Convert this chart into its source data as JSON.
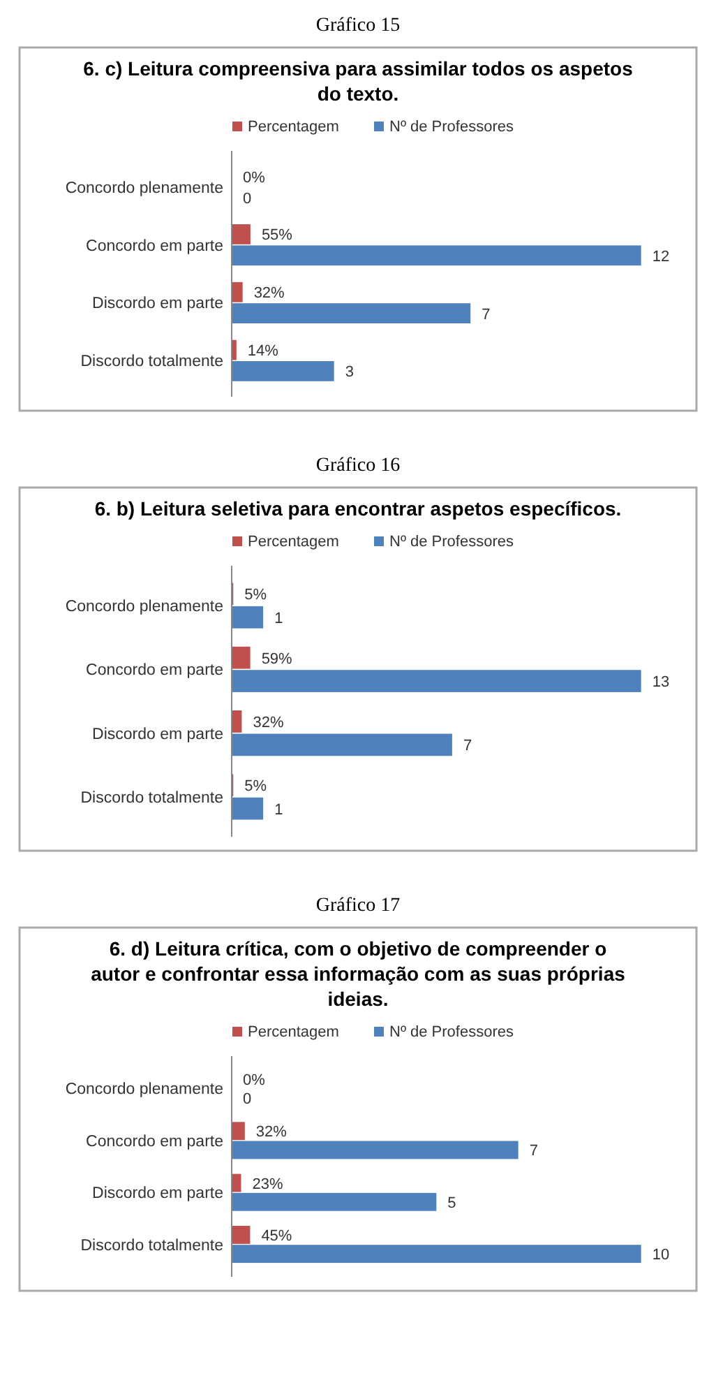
{
  "chart_data": [
    {
      "type": "bar",
      "orientation": "horizontal",
      "title": "6. c) Leitura compreensiva para assimilar todos os aspetos do texto.",
      "annotations": [
        "Gráfico 15"
      ],
      "legend": "top",
      "categories": [
        "Concordo plenamente",
        "Concordo em parte",
        "Discordo em parte",
        "Discordo totalmente"
      ],
      "series": [
        {
          "name": "Percentagem",
          "color": "#c0504d",
          "values": [
            0,
            0.55,
            0.32,
            0.14
          ],
          "value_labels": [
            "0%",
            "55%",
            "32%",
            "14%"
          ]
        },
        {
          "name": "Nº de Professores",
          "color": "#4f81bd",
          "values": [
            0,
            12,
            7,
            3
          ],
          "value_labels": [
            "0",
            "12",
            "7",
            "3"
          ]
        }
      ]
    },
    {
      "type": "bar",
      "orientation": "horizontal",
      "title": "6. b) Leitura seletiva para encontrar aspetos específicos.",
      "annotations": [
        "Gráfico 16"
      ],
      "legend": "top",
      "categories": [
        "Concordo plenamente",
        "Concordo em parte",
        "Discordo em parte",
        "Discordo totalmente"
      ],
      "series": [
        {
          "name": "Percentagem",
          "color": "#c0504d",
          "values": [
            0.05,
            0.59,
            0.32,
            0.05
          ],
          "value_labels": [
            "5%",
            "59%",
            "32%",
            "5%"
          ]
        },
        {
          "name": "Nº de Professores",
          "color": "#4f81bd",
          "values": [
            1,
            13,
            7,
            1
          ],
          "value_labels": [
            "1",
            "13",
            "7",
            "1"
          ]
        }
      ]
    },
    {
      "type": "bar",
      "orientation": "horizontal",
      "title": "6. d) Leitura crítica, com o objetivo de compreender o autor e confrontar essa informação com as suas próprias ideias.",
      "annotations": [
        "Gráfico 17"
      ],
      "legend": "top",
      "categories": [
        "Concordo plenamente",
        "Concordo em parte",
        "Discordo em parte",
        "Discordo totalmente"
      ],
      "series": [
        {
          "name": "Percentagem",
          "color": "#c0504d",
          "values": [
            0,
            0.32,
            0.23,
            0.45
          ],
          "value_labels": [
            "0%",
            "32%",
            "23%",
            "45%"
          ]
        },
        {
          "name": "Nº de Professores",
          "color": "#4f81bd",
          "values": [
            0,
            7,
            5,
            10
          ],
          "value_labels": [
            "0",
            "7",
            "5",
            "10"
          ]
        }
      ]
    }
  ]
}
